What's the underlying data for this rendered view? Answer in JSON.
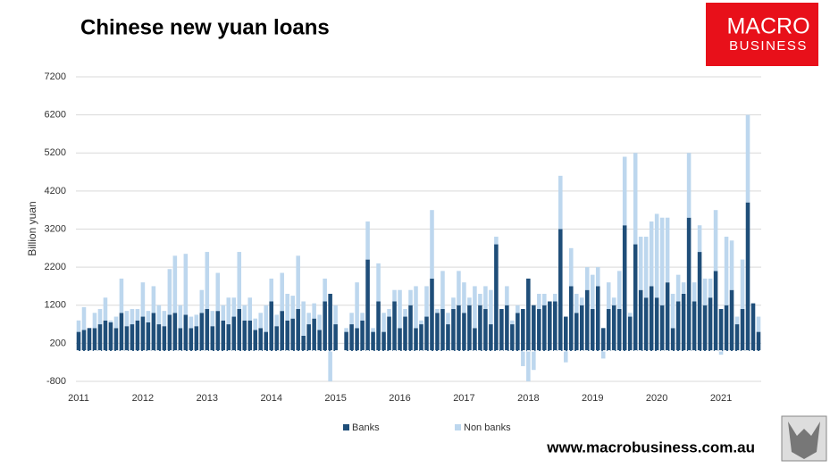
{
  "chart_data": {
    "type": "stacked-bar",
    "title": "Chinese new yuan loans",
    "y_label": "Billion yuan",
    "categories": [
      "2011",
      null,
      null,
      null,
      null,
      null,
      null,
      null,
      null,
      null,
      null,
      null,
      "2012",
      null,
      null,
      null,
      null,
      null,
      null,
      null,
      null,
      null,
      null,
      null,
      "2013",
      null,
      null,
      null,
      null,
      null,
      null,
      null,
      null,
      null,
      null,
      null,
      "2014",
      null,
      null,
      null,
      null,
      null,
      null,
      null,
      null,
      null,
      null,
      null,
      "2015",
      null,
      null,
      null,
      null,
      null,
      null,
      null,
      null,
      null,
      null,
      null,
      "2016",
      null,
      null,
      null,
      null,
      null,
      null,
      null,
      null,
      null,
      null,
      null,
      "2017",
      null,
      null,
      null,
      null,
      null,
      null,
      null,
      null,
      null,
      null,
      null,
      "2018",
      null,
      null,
      null,
      null,
      null,
      null,
      null,
      null,
      null,
      null,
      null,
      "2019",
      null,
      null,
      null,
      null,
      null,
      null,
      null,
      null,
      null,
      null,
      null,
      "2020",
      null,
      null,
      null,
      null,
      null,
      null,
      null,
      null,
      null,
      null,
      null,
      "2021",
      null,
      null,
      null,
      null,
      null,
      null,
      null
    ],
    "series": [
      {
        "name": "Banks",
        "color": "#1f4e79",
        "values": [
          500,
          550,
          600,
          600,
          700,
          800,
          750,
          600,
          1000,
          650,
          700,
          800,
          900,
          750,
          1000,
          700,
          650,
          950,
          1000,
          600,
          950,
          600,
          650,
          1000,
          1100,
          650,
          1050,
          800,
          700,
          900,
          1100,
          800,
          800,
          550,
          600,
          500,
          1300,
          650,
          1050,
          800,
          850,
          1100,
          400,
          700,
          850,
          550,
          1300,
          1500,
          700,
          null,
          500,
          700,
          600,
          800,
          2400,
          500,
          1300,
          500,
          900,
          1300,
          600,
          900,
          1200,
          600,
          700,
          900,
          1900,
          1000,
          1100,
          700,
          1100,
          1200,
          1000,
          1200,
          600,
          1200,
          1100,
          700,
          2800,
          1100,
          1200,
          700,
          1000,
          1100,
          1900,
          1200,
          1100,
          1200,
          1300,
          1300,
          3200,
          900,
          1700,
          1000,
          1200,
          1600,
          1100,
          1700,
          600,
          1100,
          1200,
          1100,
          3300,
          900,
          2800,
          1600,
          1400,
          1700,
          1400,
          1200,
          1800,
          600,
          1300,
          1500,
          3500,
          1300,
          2600,
          1200,
          1400,
          2100,
          1100,
          1200,
          1600,
          700,
          1100,
          3900,
          1250,
          500
        ]
      },
      {
        "name": "Non banks",
        "color": "#bdd7ee",
        "values": [
          300,
          600,
          0,
          400,
          400,
          600,
          50,
          300,
          900,
          400,
          400,
          300,
          900,
          300,
          700,
          500,
          400,
          1200,
          1500,
          600,
          1600,
          300,
          300,
          600,
          1500,
          400,
          1000,
          400,
          700,
          500,
          1500,
          400,
          600,
          300,
          400,
          700,
          600,
          300,
          1000,
          700,
          600,
          1400,
          900,
          300,
          400,
          400,
          600,
          -800,
          500,
          null,
          100,
          300,
          1200,
          200,
          1000,
          100,
          1000,
          500,
          200,
          300,
          1000,
          200,
          400,
          1100,
          100,
          800,
          1800,
          100,
          1000,
          300,
          300,
          900,
          800,
          200,
          1100,
          300,
          600,
          900,
          200,
          0,
          500,
          100,
          200,
          -400,
          -800,
          -500,
          400,
          300,
          0,
          200,
          1400,
          -300,
          1000,
          500,
          200,
          600,
          900,
          500,
          -200,
          700,
          200,
          1000,
          1800,
          100,
          2400,
          1400,
          1600,
          1700,
          2200,
          2300,
          1700,
          900,
          700,
          300,
          1700,
          500,
          700,
          700,
          500,
          1600,
          -100,
          1800,
          1300,
          200,
          1300,
          2300,
          0,
          400
        ]
      }
    ],
    "ylim": [
      -800,
      7200
    ],
    "yticks": [
      -800,
      200,
      1200,
      2200,
      3200,
      4200,
      5200,
      6200,
      7200
    ],
    "grid": true,
    "legend": "bottom"
  },
  "logo": {
    "line1": "MACRO",
    "line2": "BUSINESS"
  },
  "website": "www.macrobusiness.com.au"
}
